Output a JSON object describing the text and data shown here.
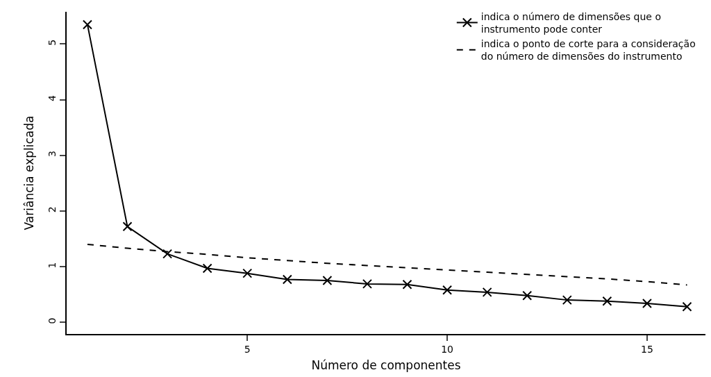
{
  "chart_data": {
    "type": "line",
    "xlabel": "Número de componentes",
    "ylabel": "Variância explicada",
    "x": [
      1,
      2,
      3,
      4,
      5,
      6,
      7,
      8,
      9,
      10,
      11,
      12,
      13,
      14,
      15,
      16
    ],
    "series": [
      {
        "name": "indica o número de dimensões que o instrumento pode conter",
        "color": "#000000",
        "marker": "cross",
        "line_style": "solid",
        "values": [
          5.35,
          1.72,
          1.23,
          0.97,
          0.88,
          0.77,
          0.75,
          0.69,
          0.68,
          0.58,
          0.54,
          0.48,
          0.4,
          0.38,
          0.34,
          0.28
        ]
      },
      {
        "name": "indica o ponto de corte para a consideração do número de dimensões do instrumento",
        "color": "#000000",
        "marker": "none",
        "line_style": "dashed",
        "values": [
          1.4,
          1.33,
          1.27,
          1.22,
          1.16,
          1.11,
          1.06,
          1.02,
          0.98,
          0.94,
          0.9,
          0.86,
          0.82,
          0.78,
          0.73,
          0.67
        ]
      }
    ],
    "xlim": [
      0.48,
      16.46
    ],
    "ylim": [
      -0.21,
      5.58
    ],
    "xticks": [
      5,
      10,
      15
    ],
    "yticks": [
      0,
      1,
      2,
      3,
      4,
      5
    ],
    "grid": false,
    "legend": "top right"
  }
}
